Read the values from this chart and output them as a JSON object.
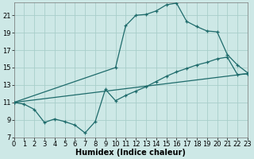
{
  "xlabel": "Humidex (Indice chaleur)",
  "bg_color": "#cde8e6",
  "grid_color": "#a8ceca",
  "line_color": "#1e6b6b",
  "line1_x": [
    0,
    1,
    2,
    3,
    4,
    5,
    6,
    7,
    8,
    9,
    10,
    11,
    12,
    13,
    14,
    15,
    16,
    17,
    18,
    19,
    20,
    21,
    22,
    23
  ],
  "line1_y": [
    11.0,
    10.8,
    10.2,
    8.7,
    9.1,
    8.8,
    8.4,
    7.5,
    8.8,
    12.5,
    11.2,
    11.8,
    12.3,
    12.8,
    13.4,
    14.0,
    14.5,
    14.9,
    15.3,
    15.6,
    16.0,
    16.2,
    14.2,
    14.3
  ],
  "line2_x": [
    0,
    23
  ],
  "line2_y": [
    11.0,
    14.3
  ],
  "line3_x": [
    0,
    10,
    11,
    12,
    13,
    14,
    15,
    16,
    17,
    18,
    19,
    20,
    21,
    22,
    23
  ],
  "line3_y": [
    11.0,
    15.0,
    19.8,
    21.0,
    21.1,
    21.5,
    22.2,
    22.4,
    20.3,
    19.7,
    19.2,
    19.1,
    16.5,
    15.3,
    14.4
  ],
  "xlim": [
    0,
    23
  ],
  "ylim": [
    7,
    22.5
  ],
  "xticks": [
    0,
    1,
    2,
    3,
    4,
    5,
    6,
    7,
    8,
    9,
    10,
    11,
    12,
    13,
    14,
    15,
    16,
    17,
    18,
    19,
    20,
    21,
    22,
    23
  ],
  "yticks": [
    7,
    9,
    11,
    13,
    15,
    17,
    19,
    21
  ],
  "tick_fontsize": 6,
  "xlabel_fontsize": 7
}
